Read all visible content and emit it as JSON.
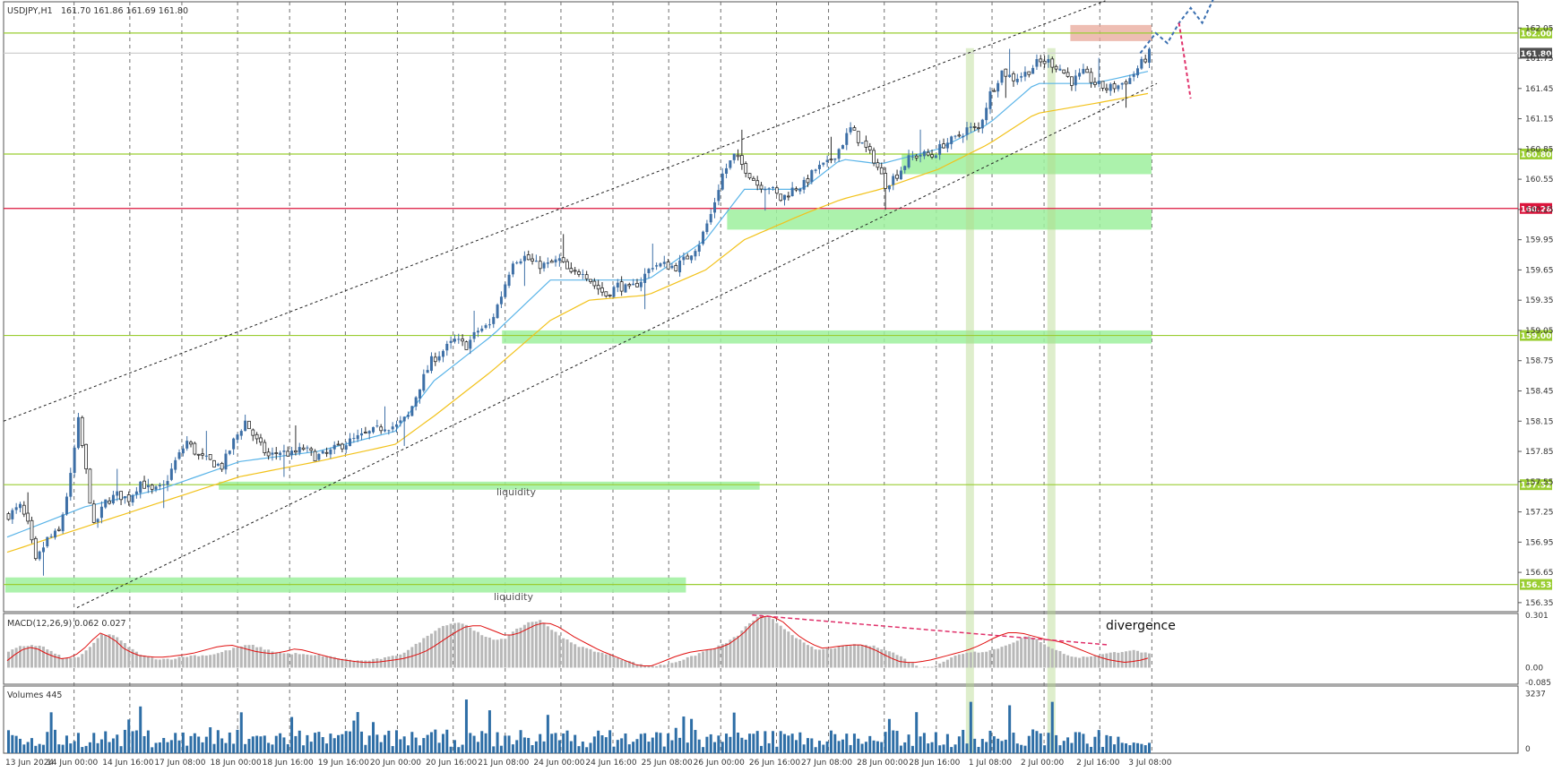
{
  "header": {
    "symbol": "USDJPY,H1",
    "ohlc": "161.70 161.86 161.69 161.80"
  },
  "panels": {
    "macd_label": "MACD(12,26,9) 0.062 0.027",
    "volumes_label": "Volumes 445"
  },
  "annotations": {
    "divergence": "divergence",
    "liquidity_upper": "liquidity",
    "liquidity_lower": "liquidity"
  },
  "colors": {
    "bull": "#3d6fa6",
    "bear": "#2a2a2a",
    "ema_fast": "#5ab4e8",
    "ema_slow": "#f2c21b",
    "level_green": "#9acd32",
    "level_red": "#dc143c",
    "zone_green": "#9ef09e",
    "macd_hist": "#b8b8b8",
    "macd_signal": "#e01010",
    "volume": "#2e6ea6",
    "projection": "#3a6fb0",
    "projection_down": "#e0306a"
  },
  "chart_data": [
    {
      "type": "candlestick",
      "title": "USDJPY,H1",
      "x_tick_labels": [
        "13 Jun 2024",
        "14 Jun 00:00",
        "14 Jun 16:00",
        "17 Jun 08:00",
        "18 Jun 00:00",
        "18 Jun 16:00",
        "19 Jun 16:00",
        "20 Jun 00:00",
        "20 Jun 16:00",
        "21 Jun 08:00",
        "24 Jun 00:00",
        "24 Jun 16:00",
        "25 Jun 08:00",
        "26 Jun 00:00",
        "26 Jun 16:00",
        "27 Jun 08:00",
        "28 Jun 00:00",
        "28 Jun 16:00",
        "1 Jul 08:00",
        "2 Jul 00:00",
        "2 Jul 16:00",
        "3 Jul 08:00"
      ],
      "y_ticks": [
        156.35,
        156.65,
        156.95,
        157.25,
        157.55,
        157.85,
        158.15,
        158.45,
        158.75,
        159.05,
        159.35,
        159.65,
        159.95,
        160.25,
        160.55,
        160.85,
        161.15,
        161.45,
        161.75,
        162.05
      ],
      "ylim": [
        156.26,
        162.31
      ],
      "price_path": [
        [
          0,
          157.22
        ],
        [
          3,
          157.3
        ],
        [
          5,
          157.12
        ],
        [
          7,
          156.75
        ],
        [
          10,
          156.98
        ],
        [
          13,
          157.05
        ],
        [
          16,
          157.6
        ],
        [
          18,
          158.15
        ],
        [
          20,
          157.65
        ],
        [
          22,
          157.1
        ],
        [
          25,
          157.35
        ],
        [
          28,
          157.42
        ],
        [
          31,
          157.38
        ],
        [
          34,
          157.55
        ],
        [
          37,
          157.45
        ],
        [
          40,
          157.5
        ],
        [
          43,
          157.75
        ],
        [
          46,
          157.95
        ],
        [
          49,
          157.8
        ],
        [
          52,
          157.75
        ],
        [
          55,
          157.7
        ],
        [
          58,
          157.95
        ],
        [
          61,
          158.15
        ],
        [
          64,
          157.95
        ],
        [
          67,
          157.8
        ],
        [
          70,
          157.85
        ],
        [
          73,
          157.82
        ],
        [
          76,
          157.88
        ],
        [
          79,
          157.8
        ],
        [
          82,
          157.82
        ],
        [
          85,
          157.9
        ],
        [
          88,
          157.95
        ],
        [
          91,
          158.0
        ],
        [
          94,
          158.05
        ],
        [
          97,
          158.1
        ],
        [
          100,
          158.1
        ],
        [
          103,
          158.2
        ],
        [
          106,
          158.5
        ],
        [
          109,
          158.75
        ],
        [
          112,
          158.85
        ],
        [
          115,
          158.95
        ],
        [
          118,
          158.9
        ],
        [
          121,
          159.05
        ],
        [
          124,
          159.1
        ],
        [
          127,
          159.4
        ],
        [
          130,
          159.75
        ],
        [
          133,
          159.78
        ],
        [
          136,
          159.7
        ],
        [
          139,
          159.7
        ],
        [
          142,
          159.75
        ],
        [
          145,
          159.6
        ],
        [
          148,
          159.65
        ],
        [
          151,
          159.5
        ],
        [
          154,
          159.4
        ],
        [
          157,
          159.5
        ],
        [
          160,
          159.45
        ],
        [
          163,
          159.55
        ],
        [
          166,
          159.7
        ],
        [
          169,
          159.7
        ],
        [
          172,
          159.68
        ],
        [
          175,
          159.78
        ],
        [
          178,
          159.92
        ],
        [
          181,
          160.2
        ],
        [
          184,
          160.6
        ],
        [
          187,
          160.78
        ],
        [
          190,
          160.65
        ],
        [
          193,
          160.5
        ],
        [
          196,
          160.48
        ],
        [
          199,
          160.35
        ],
        [
          202,
          160.45
        ],
        [
          205,
          160.5
        ],
        [
          208,
          160.65
        ],
        [
          211,
          160.7
        ],
        [
          214,
          160.85
        ],
        [
          217,
          161.05
        ],
        [
          220,
          160.9
        ],
        [
          223,
          160.75
        ],
        [
          226,
          160.5
        ],
        [
          229,
          160.6
        ],
        [
          232,
          160.75
        ],
        [
          235,
          160.8
        ],
        [
          238,
          160.78
        ],
        [
          241,
          160.9
        ],
        [
          244,
          160.95
        ],
        [
          247,
          161.05
        ],
        [
          250,
          161.05
        ],
        [
          253,
          161.4
        ],
        [
          256,
          161.62
        ],
        [
          259,
          161.55
        ],
        [
          262,
          161.6
        ],
        [
          265,
          161.7
        ],
        [
          268,
          161.72
        ],
        [
          271,
          161.65
        ],
        [
          274,
          161.52
        ],
        [
          277,
          161.6
        ],
        [
          280,
          161.5
        ],
        [
          283,
          161.45
        ],
        [
          286,
          161.48
        ],
        [
          289,
          161.55
        ],
        [
          292,
          161.7
        ],
        [
          294,
          161.8
        ]
      ],
      "ema_fast_path": [
        [
          0,
          157.0
        ],
        [
          20,
          157.3
        ],
        [
          40,
          157.48
        ],
        [
          60,
          157.75
        ],
        [
          80,
          157.85
        ],
        [
          100,
          158.05
        ],
        [
          110,
          158.55
        ],
        [
          125,
          159.0
        ],
        [
          140,
          159.55
        ],
        [
          150,
          159.55
        ],
        [
          165,
          159.55
        ],
        [
          180,
          159.95
        ],
        [
          190,
          160.45
        ],
        [
          205,
          160.45
        ],
        [
          215,
          160.75
        ],
        [
          225,
          160.7
        ],
        [
          240,
          160.85
        ],
        [
          253,
          161.1
        ],
        [
          265,
          161.5
        ],
        [
          280,
          161.5
        ],
        [
          294,
          161.62
        ]
      ],
      "ema_slow_path": [
        [
          0,
          156.85
        ],
        [
          20,
          157.1
        ],
        [
          40,
          157.35
        ],
        [
          60,
          157.6
        ],
        [
          80,
          157.75
        ],
        [
          100,
          157.92
        ],
        [
          110,
          158.2
        ],
        [
          125,
          158.65
        ],
        [
          140,
          159.15
        ],
        [
          150,
          159.35
        ],
        [
          165,
          159.4
        ],
        [
          180,
          159.65
        ],
        [
          190,
          159.95
        ],
        [
          205,
          160.2
        ],
        [
          215,
          160.35
        ],
        [
          225,
          160.45
        ],
        [
          240,
          160.65
        ],
        [
          253,
          160.9
        ],
        [
          265,
          161.2
        ],
        [
          280,
          161.3
        ],
        [
          294,
          161.4
        ]
      ],
      "levels": [
        {
          "price": 162.0,
          "label": "162.00",
          "color": "#9acd32",
          "tag_bg": "#9acd32",
          "tag_fg": "#ffffff"
        },
        {
          "price": 161.8,
          "label": "161.80",
          "color": "#d0d0d0",
          "tag_bg": "#505050",
          "tag_fg": "#ffffff"
        },
        {
          "price": 160.8,
          "label": "160.80",
          "color": "#9acd32",
          "tag_bg": "#9acd32",
          "tag_fg": "#ffffff"
        },
        {
          "price": 160.26,
          "label": "160.26",
          "color": "#dc143c",
          "tag_bg": "#dc143c",
          "tag_fg": "#ffffff"
        },
        {
          "price": 159.0,
          "label": "159.00",
          "color": "#9acd32",
          "tag_bg": "#9acd32",
          "tag_fg": "#ffffff"
        },
        {
          "price": 157.52,
          "label": "157.52",
          "color": "#9acd32",
          "tag_bg": "#9acd32",
          "tag_fg": "#ffffff"
        },
        {
          "price": 156.53,
          "label": "156.53",
          "color": "#9acd32",
          "tag_bg": "#9acd32",
          "tag_fg": "#ffffff"
        }
      ],
      "zones": [
        {
          "bar_from": 231,
          "bar_to": 294,
          "low": 160.6,
          "high": 160.8
        },
        {
          "bar_from": 186,
          "bar_to": 294,
          "low": 160.05,
          "high": 160.25
        },
        {
          "bar_from": 128,
          "bar_to": 294,
          "low": 158.92,
          "high": 159.05
        },
        {
          "bar_from": 55,
          "bar_to": 193,
          "low": 157.47,
          "high": 157.55,
          "label_key": "liquidity_upper"
        },
        {
          "bar_from": 0,
          "bar_to": 174,
          "low": 156.45,
          "high": 156.6,
          "label_key": "liquidity_lower"
        }
      ],
      "resistance_zone": {
        "bar_from": 274,
        "bar_to": 294,
        "low": 161.92,
        "high": 162.08
      },
      "channel_upper": [
        [
          0,
          158.15
        ],
        [
          283,
          162.32
        ]
      ],
      "channel_lower": [
        [
          18,
          156.3
        ],
        [
          294,
          161.5
        ]
      ],
      "vertical_highlights": [
        248,
        269
      ]
    },
    {
      "type": "macd",
      "title": "MACD(12,26,9) 0.062 0.027",
      "y_ticks": [
        0.301,
        0.0,
        -0.085
      ],
      "ylim": [
        -0.095,
        0.31
      ],
      "hist": [
        0.09,
        0.12,
        0.13,
        0.12,
        0.08,
        0.05,
        0.06,
        0.11,
        0.19,
        0.19,
        0.14,
        0.09,
        0.06,
        0.05,
        0.05,
        0.06,
        0.07,
        0.07,
        0.08,
        0.1,
        0.12,
        0.13,
        0.11,
        0.09,
        0.08,
        0.08,
        0.07,
        0.07,
        0.06,
        0.05,
        0.04,
        0.04,
        0.05,
        0.06,
        0.08,
        0.12,
        0.17,
        0.22,
        0.25,
        0.26,
        0.23,
        0.18,
        0.16,
        0.17,
        0.22,
        0.26,
        0.27,
        0.22,
        0.17,
        0.13,
        0.11,
        0.09,
        0.07,
        0.05,
        0.03,
        0.01,
        0.01,
        0.02,
        0.04,
        0.06,
        0.09,
        0.11,
        0.14,
        0.18,
        0.25,
        0.3,
        0.28,
        0.23,
        0.18,
        0.13,
        0.1,
        0.11,
        0.12,
        0.13,
        0.13,
        0.12,
        0.1,
        0.07,
        0.03,
        0.0,
        0.01,
        0.04,
        0.07,
        0.09,
        0.09,
        0.1,
        0.12,
        0.15,
        0.18,
        0.16,
        0.12,
        0.09,
        0.06,
        0.06,
        0.07,
        0.08,
        0.09,
        0.1,
        0.09,
        0.07
      ],
      "signal": [
        0.04,
        0.1,
        0.12,
        0.08,
        0.05,
        0.06,
        0.12,
        0.2,
        0.17,
        0.1,
        0.07,
        0.06,
        0.06,
        0.07,
        0.08,
        0.1,
        0.12,
        0.13,
        0.11,
        0.09,
        0.08,
        0.09,
        0.11,
        0.09,
        0.07,
        0.05,
        0.04,
        0.03,
        0.03,
        0.04,
        0.05,
        0.07,
        0.1,
        0.15,
        0.2,
        0.24,
        0.24,
        0.21,
        0.18,
        0.2,
        0.24,
        0.26,
        0.23,
        0.18,
        0.14,
        0.1,
        0.07,
        0.04,
        0.01,
        0.01,
        0.04,
        0.07,
        0.09,
        0.1,
        0.11,
        0.14,
        0.2,
        0.28,
        0.3,
        0.26,
        0.19,
        0.14,
        0.11,
        0.12,
        0.13,
        0.13,
        0.1,
        0.06,
        0.03,
        0.03,
        0.04,
        0.06,
        0.08,
        0.1,
        0.13,
        0.17,
        0.2,
        0.2,
        0.18,
        0.16,
        0.15,
        0.12,
        0.09,
        0.06,
        0.04,
        0.03,
        0.04,
        0.06
      ]
    },
    {
      "type": "bar",
      "title": "Volumes 445",
      "y_ticks": [
        3237,
        0
      ],
      "ylim": [
        0,
        3400
      ],
      "x_tick_labels": [
        "13 Jun 2024",
        "14 Jun 00:00",
        "14 Jun 16:00",
        "17 Jun 08:00",
        "18 Jun 00:00",
        "18 Jun 16:00",
        "19 Jun 16:00",
        "20 Jun 00:00",
        "20 Jun 16:00",
        "21 Jun 08:00",
        "24 Jun 00:00",
        "24 Jun 16:00",
        "25 Jun 08:00",
        "26 Jun 00:00",
        "26 Jun 16:00",
        "27 Jun 08:00",
        "28 Jun 00:00",
        "28 Jun 16:00",
        "1 Jul 08:00",
        "2 Jul 00:00",
        "2 Jul 16:00",
        "3 Jul 08:00"
      ]
    }
  ]
}
